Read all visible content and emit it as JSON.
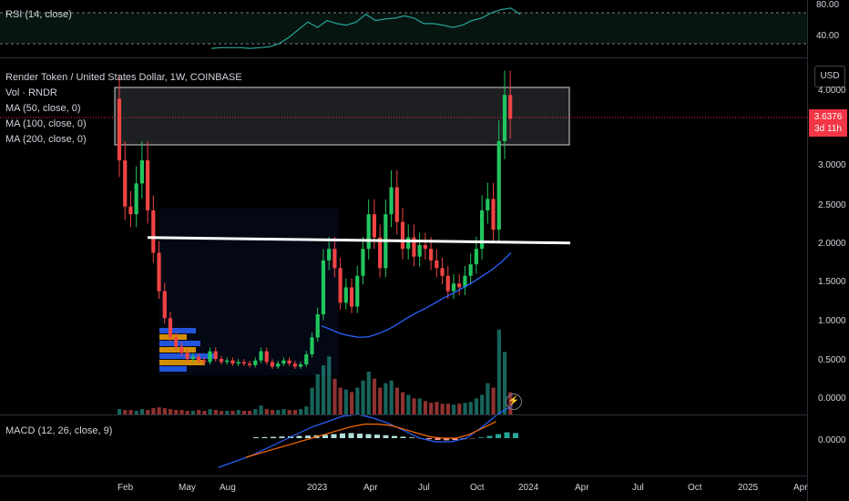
{
  "rsi": {
    "label": "RSI (14, close)",
    "levels": [
      "80.00",
      "40.00"
    ]
  },
  "main": {
    "title": "Render Token / United States Dollar, 1W, COINBASE",
    "indicators": [
      "Vol · RNDR",
      "MA (50, close, 0)",
      "MA (100, close, 0)",
      "MA (200, close, 0)"
    ],
    "price_ticks": [
      "4.0000",
      "3.5000",
      "3.0000",
      "2.5000",
      "2.0000",
      "1.5000",
      "1.0000",
      "0.5000",
      "0.0000"
    ],
    "last_price": "3.6376",
    "countdown": "3d 11h",
    "currency_button": "USD"
  },
  "macd": {
    "label": "MACD (12, 26, close, 9)",
    "tick": "0.0000"
  },
  "time_axis": [
    "Feb",
    "May",
    "Aug",
    "2023",
    "Apr",
    "Jul",
    "Oct",
    "2024",
    "Apr",
    "Jul",
    "Oct",
    "2025",
    "Apr"
  ],
  "colors": {
    "up": "#22c55e",
    "down": "#ef4444",
    "ma": "#2962ff",
    "rsi": "#26a69a",
    "level_line": "#ffffff"
  },
  "icons": {
    "flash": "lightning-icon"
  },
  "chart_data": [
    {
      "type": "candlestick",
      "title": "Render Token / United States Dollar, 1W, COINBASE",
      "ylim": [
        0,
        4.2
      ],
      "closes": [
        3.1,
        2.5,
        2.4,
        2.8,
        3.1,
        2.45,
        1.9,
        1.4,
        1.05,
        0.8,
        0.68,
        0.6,
        0.52,
        0.55,
        0.5,
        0.48,
        0.62,
        0.52,
        0.48,
        0.5,
        0.46,
        0.48,
        0.46,
        0.44,
        0.5,
        0.62,
        0.48,
        0.42,
        0.46,
        0.5,
        0.46,
        0.42,
        0.45,
        0.58,
        0.8,
        1.1,
        1.8,
        1.95,
        1.7,
        1.25,
        1.45,
        1.2,
        1.6,
        1.95,
        2.4,
        2.1,
        1.7,
        2.4,
        2.75,
        2.3,
        1.95,
        2.1,
        1.85,
        2.0,
        1.95,
        1.8,
        1.7,
        1.6,
        1.4,
        1.5,
        1.45,
        1.6,
        1.75,
        1.95,
        2.45,
        2.6,
        2.2,
        3.35,
        3.95,
        3.64
      ],
      "ma_line": [
        0.95,
        0.9,
        0.85,
        0.82,
        0.8,
        0.81,
        0.85,
        0.9,
        0.97,
        1.05,
        1.12,
        1.18,
        1.25,
        1.32,
        1.38,
        1.45,
        1.52,
        1.6,
        1.68,
        1.78,
        1.9
      ],
      "level_line": 2.05,
      "volume_relative": [
        0.06,
        0.05,
        0.05,
        0.04,
        0.06,
        0.05,
        0.07,
        0.08,
        0.07,
        0.06,
        0.05,
        0.05,
        0.04,
        0.04,
        0.05,
        0.04,
        0.06,
        0.05,
        0.04,
        0.04,
        0.04,
        0.05,
        0.04,
        0.04,
        0.06,
        0.1,
        0.06,
        0.05,
        0.05,
        0.06,
        0.05,
        0.05,
        0.06,
        0.09,
        0.3,
        0.45,
        0.55,
        0.65,
        0.4,
        0.3,
        0.28,
        0.25,
        0.3,
        0.38,
        0.48,
        0.4,
        0.3,
        0.35,
        0.38,
        0.3,
        0.25,
        0.22,
        0.18,
        0.18,
        0.15,
        0.13,
        0.14,
        0.12,
        0.12,
        0.11,
        0.12,
        0.13,
        0.14,
        0.18,
        0.22,
        0.35,
        0.3,
        0.95,
        0.7,
        0.25
      ]
    },
    {
      "type": "line",
      "title": "RSI (14, close)",
      "ylim": [
        30,
        90
      ],
      "values": [
        34,
        35,
        35,
        35,
        34,
        35,
        36,
        40,
        48,
        58,
        68,
        61,
        70,
        66,
        64,
        68,
        78,
        70,
        72,
        73,
        76,
        73,
        66,
        66,
        64,
        61,
        64,
        70,
        73,
        80,
        84,
        86,
        78
      ]
    },
    {
      "type": "bar+line",
      "title": "MACD (12, 26, close, 9)",
      "histogram": [
        0.12,
        0.15,
        0.18,
        0.22,
        0.25,
        0.3,
        0.35,
        0.4,
        0.45,
        0.55,
        0.65,
        0.7,
        0.62,
        0.55,
        0.48,
        0.4,
        0.3,
        0.2,
        0.1,
        -0.05,
        -0.15,
        -0.25,
        -0.3,
        -0.25,
        -0.15,
        -0.05,
        0.1,
        0.3,
        0.55,
        0.8,
        0.7
      ],
      "macd_line": [
        -1.6,
        -1.3,
        -1.0,
        -0.6,
        -0.2,
        0.2,
        0.6,
        0.9,
        1.2,
        1.3,
        1.1,
        0.8,
        0.4,
        0.0,
        -0.2,
        -0.2,
        0.0,
        0.6,
        1.3,
        1.8
      ],
      "signal_line": [
        -1.5,
        -1.2,
        -0.9,
        -0.6,
        -0.3,
        0.0,
        0.3,
        0.6,
        0.9,
        1.1,
        1.1,
        1.0,
        0.7,
        0.4,
        0.1,
        0.0,
        0.0,
        0.3,
        0.8,
        1.3
      ]
    }
  ]
}
